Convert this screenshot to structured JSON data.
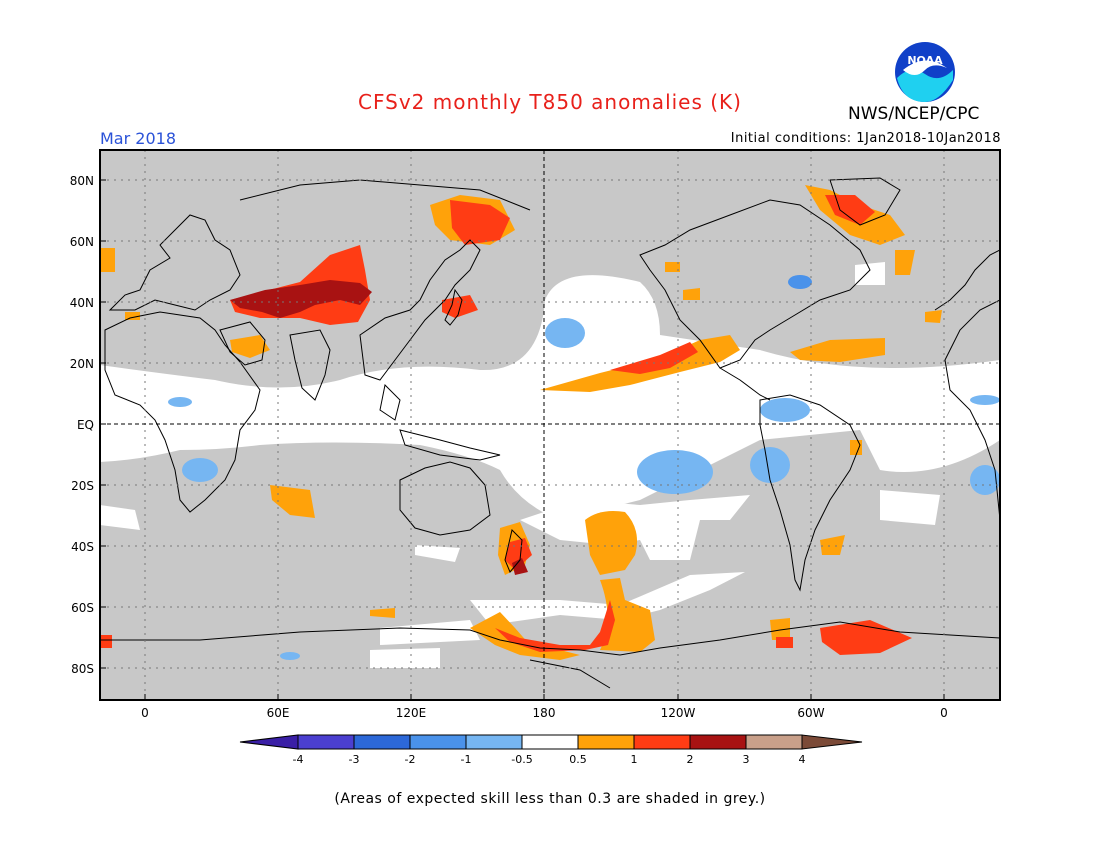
{
  "title": "CFSv2 monthly T850 anomalies (K)",
  "organization": "NWS/NCEP/CPC",
  "logo": {
    "name": "noaa-logo",
    "text": "NOAA"
  },
  "valid_month": "Mar 2018",
  "initial_conditions": "Initial conditions: 1Jan2018-10Jan2018",
  "footnote": "(Areas of expected skill less than 0.3 are shaded in grey.)",
  "map": {
    "lat_labels": [
      "80N",
      "60N",
      "40N",
      "20N",
      "EQ",
      "20S",
      "40S",
      "60S",
      "80S"
    ],
    "lon_labels": [
      "0",
      "60E",
      "120E",
      "180",
      "120W",
      "60W",
      "0"
    ],
    "colors": {
      "frame": "#000000",
      "low_skill_grey": "#c8c8c8",
      "neutral_white": "#ffffff",
      "coastline": "#000000"
    }
  },
  "colorbar": {
    "labels": [
      "-4",
      "-3",
      "-2",
      "-1",
      "-0.5",
      "0.5",
      "1",
      "2",
      "3",
      "4"
    ],
    "bins": [
      {
        "range": "< -4",
        "color": "#3a1fa6"
      },
      {
        "range": "-4 to -3",
        "color": "#4b3fd0"
      },
      {
        "range": "-3 to -2",
        "color": "#2c68d8"
      },
      {
        "range": "-2 to -1",
        "color": "#4a92ea"
      },
      {
        "range": "-1 to -0.5",
        "color": "#76b6f2"
      },
      {
        "range": "-0.5 to 0.5",
        "color": "#ffffff"
      },
      {
        "range": "0.5 to 1",
        "color": "#ffa20a"
      },
      {
        "range": "1 to 2",
        "color": "#ff3c14"
      },
      {
        "range": "2 to 3",
        "color": "#a81212"
      },
      {
        "range": "3 to 4",
        "color": "#c9a08a"
      },
      {
        "range": "> 4",
        "color": "#7b4a37"
      }
    ]
  }
}
